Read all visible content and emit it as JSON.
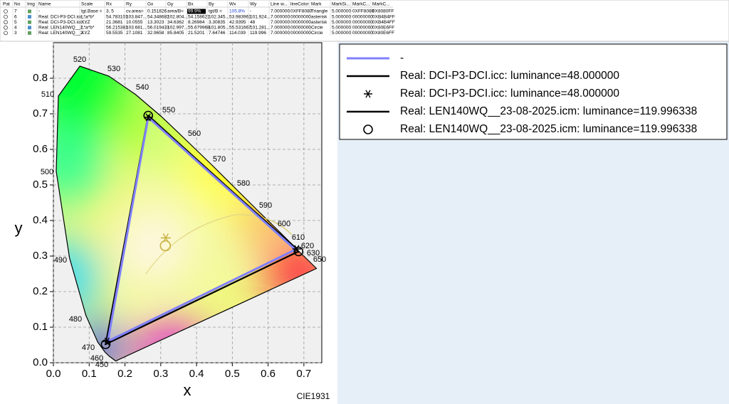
{
  "table": {
    "headers": [
      "Pat",
      "No",
      "Img",
      "Name",
      "Scale",
      "Rx",
      "Ry",
      "Gx",
      "Gy",
      "Bx",
      "By",
      "Wx",
      "Wy",
      "Line w...",
      "lineColor",
      "Mark",
      "MarkSi...",
      "MarkC...",
      "MarkC..."
    ],
    "rows": [
      [
        "7",
        "-",
        "tgt.Base =",
        "3, 5",
        "cv.area=",
        "0.151826",
        "area/B=",
        "99.9%",
        "tgt/B =",
        "105.8%",
        "-",
        "7.000000",
        "0XFF8080",
        "Triangle",
        "5.000000",
        "0XFF8080",
        "0X8080FF"
      ],
      [
        "6",
        "Real: DCI-P3-DCI.icc:...",
        "L*a*b*",
        "54.783101",
        "103.847...",
        "54.348682",
        "102.804...",
        "54.158621",
        "102.345...",
        "53.983961",
        "101.924...",
        "7.000000",
        "00000000",
        "asterisk",
        "5.000000",
        "00000000",
        "0XB4B4FF"
      ],
      [
        "5",
        "Real: DCI-P3-DCI.icc:...",
        "XYZ",
        "21.3681",
        "10.0555",
        "13.3023",
        "34.6362",
        "8.26984",
        "3.30835",
        "42.9395",
        "48",
        "7.000000",
        "00000000",
        "asterisk",
        "5.000000",
        "00000000",
        "0XB4B4FF"
      ],
      [
        "4",
        "Real: LEN140WQ__2...",
        "L*a*b*",
        "56.215381",
        "103.681...",
        "56.019433",
        "102.997...",
        "55.679968",
        "101.805...",
        "55.531667",
        "101.281...",
        "7.000000",
        "00000000",
        "Circle",
        "5.000000",
        "00000000",
        "0X80E6FF"
      ],
      [
        "3",
        "Real: LEN140WQ__2...",
        "XYZ",
        "59.5535",
        "27.1081",
        "32.9658",
        "85.8405",
        "21.5201",
        "7.64746",
        "114.039",
        "119.996",
        "7.000000",
        "00000000",
        "Circle",
        "5.000000",
        "00000000",
        "0X80E6FF"
      ]
    ]
  },
  "chart_data": {
    "type": "line",
    "x_label": "x",
    "y_label": "y",
    "footnote": "CIE1931",
    "xlim": [
      0,
      0.75
    ],
    "ylim": [
      0,
      0.9
    ],
    "xticks": [
      {
        "value": 0,
        "label": "0.0"
      },
      0.1,
      0.2,
      0.3,
      0.4,
      0.5,
      0.6,
      0.7
    ],
    "yticks": [
      {
        "value": 0,
        "label": "0.0"
      },
      0.1,
      0.2,
      0.3,
      0.4,
      0.5,
      0.6,
      0.7,
      0.8
    ],
    "grid": true,
    "wavelength_labels": [
      "450",
      "460",
      "470",
      "480",
      "490",
      "500",
      "510",
      "520",
      "530",
      "540",
      "550",
      "560",
      "570",
      "580",
      "590",
      "600",
      "610",
      "620",
      "630",
      "650"
    ],
    "series": [
      {
        "name": "-",
        "color": "#8080ff",
        "x": [
          0.676,
          0.265,
          0.152
        ],
        "y": [
          0.318,
          0.69,
          0.06
        ]
      },
      {
        "name": "Real: DCI-P3-DCI.icc: luminance=48.000000",
        "color": "#000000",
        "marker": "asterisk",
        "x": [
          0.68,
          0.265,
          0.15
        ],
        "y": [
          0.32,
          0.69,
          0.06
        ],
        "white_x": 0.314,
        "white_y": 0.351
      },
      {
        "name": "Real: LEN140WQ__23-08-2025.icm: luminance=119.996338",
        "color": "#000000",
        "marker": "circle",
        "x": [
          0.685,
          0.265,
          0.146
        ],
        "y": [
          0.313,
          0.695,
          0.052
        ],
        "white_x": 0.313,
        "white_y": 0.329
      }
    ]
  }
}
